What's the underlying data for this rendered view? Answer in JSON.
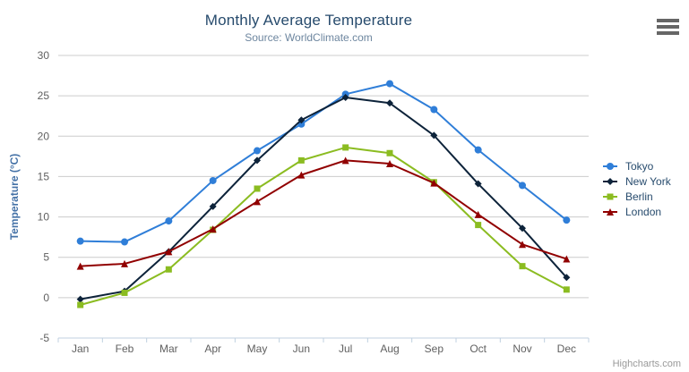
{
  "chart_data": {
    "type": "line",
    "title": "Monthly Average Temperature",
    "subtitle": "Source: WorldClimate.com",
    "xlabel": "",
    "ylabel": "Temperature (°C)",
    "categories": [
      "Jan",
      "Feb",
      "Mar",
      "Apr",
      "May",
      "Jun",
      "Jul",
      "Aug",
      "Sep",
      "Oct",
      "Nov",
      "Dec"
    ],
    "series": [
      {
        "name": "Tokyo",
        "color": "#2f7ed8",
        "marker": "circle",
        "values": [
          7.0,
          6.9,
          9.5,
          14.5,
          18.2,
          21.5,
          25.2,
          26.5,
          23.3,
          18.3,
          13.9,
          9.6
        ]
      },
      {
        "name": "New York",
        "color": "#0d233a",
        "marker": "diamond",
        "values": [
          -0.2,
          0.8,
          5.7,
          11.3,
          17.0,
          22.0,
          24.8,
          24.1,
          20.1,
          14.1,
          8.6,
          2.5
        ]
      },
      {
        "name": "Berlin",
        "color": "#8bbc21",
        "marker": "square",
        "values": [
          -0.9,
          0.6,
          3.5,
          8.4,
          13.5,
          17.0,
          18.6,
          17.9,
          14.3,
          9.0,
          3.9,
          1.0
        ]
      },
      {
        "name": "London",
        "color": "#910000",
        "marker": "triangle",
        "values": [
          3.9,
          4.2,
          5.7,
          8.5,
          11.9,
          15.2,
          17.0,
          16.6,
          14.2,
          10.3,
          6.6,
          4.8
        ]
      }
    ],
    "ylim": [
      -5,
      30
    ],
    "y_tick_interval": 5,
    "grid": true,
    "legend_position": "right"
  },
  "colors": {
    "title": "#274b6d",
    "subtitle": "#6d869f",
    "axis_label": "#606060",
    "axis_title": "#4572a7",
    "grid_line": "#cccccc",
    "axis_line": "#c0d0e0",
    "legend_text": "#274b6d",
    "menu_icon": "#666666",
    "credits_text": "#999999"
  },
  "credits": {
    "label": "Highcharts.com"
  }
}
